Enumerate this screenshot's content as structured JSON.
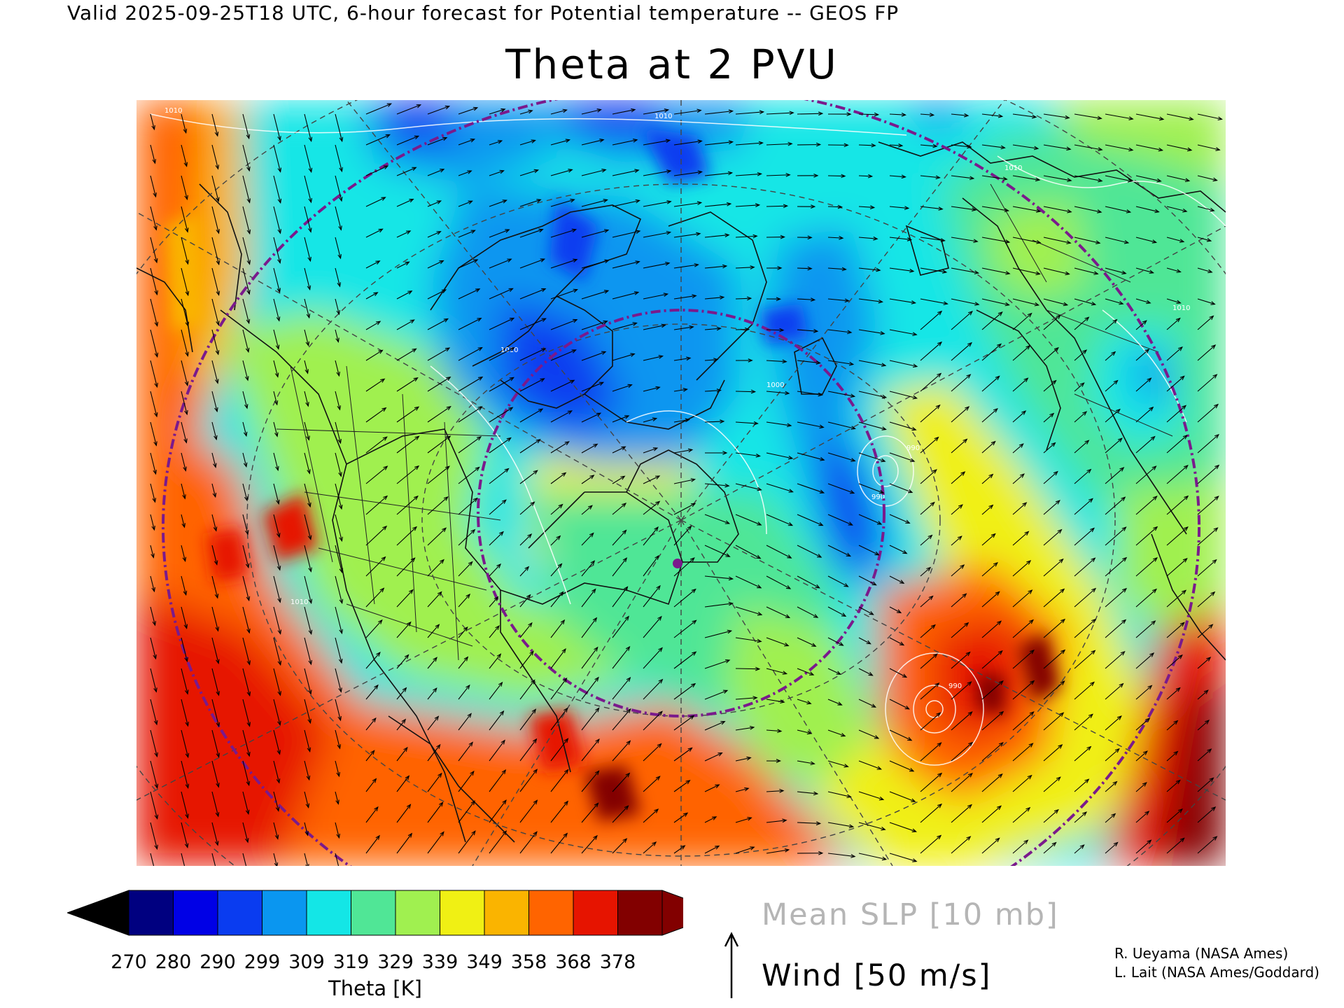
{
  "header": {
    "valid_line": "Valid 2025-09-25T18 UTC, 6-hour forecast for Potential temperature -- GEOS FP",
    "title": "Theta at 2 PVU"
  },
  "colorbar": {
    "label": "Theta [K]",
    "ticks": [
      "270",
      "280",
      "290",
      "299",
      "309",
      "319",
      "329",
      "339",
      "349",
      "358",
      "368",
      "378"
    ],
    "colors": [
      "#000080",
      "#0000e6",
      "#0a3cf0",
      "#0a96f0",
      "#14e6e6",
      "#50e696",
      "#a0f050",
      "#f0f014",
      "#fab400",
      "#ff6400",
      "#e61400",
      "#820000"
    ],
    "under_color": "#000000",
    "over_color": "#820000"
  },
  "legend": {
    "slp": "Mean SLP [10 mb]",
    "wind": "Wind [50 m/s]"
  },
  "map": {
    "contour_labels": [
      "1010",
      "1010",
      "1010",
      "1010",
      "1010",
      "990",
      "990",
      "990",
      "1000",
      "1010"
    ],
    "overlay_colors": {
      "slp_contours": "#ffffff",
      "circles": "#7a1a8c",
      "graticule": "#444444",
      "marker": "#7a1a8c"
    }
  },
  "credits": {
    "line1": "R. Ueyama (NASA Ames)",
    "line2": "L. Lait (NASA Ames/Goddard)"
  }
}
